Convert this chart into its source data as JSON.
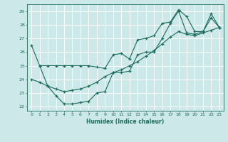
{
  "xlabel": "Humidex (Indice chaleur)",
  "bg_color": "#cce8e8",
  "grid_color": "#ffffff",
  "line_color": "#1a6b5a",
  "xlim": [
    -0.5,
    23.5
  ],
  "ylim": [
    21.7,
    29.5
  ],
  "yticks": [
    22,
    23,
    24,
    25,
    26,
    27,
    28,
    29
  ],
  "xticks": [
    0,
    1,
    2,
    3,
    4,
    5,
    6,
    7,
    8,
    9,
    10,
    11,
    12,
    13,
    14,
    15,
    16,
    17,
    18,
    19,
    20,
    21,
    22,
    23
  ],
  "line1_x": [
    0,
    1,
    2,
    3,
    4,
    5,
    6,
    7,
    8,
    9,
    10,
    11,
    12,
    13,
    14,
    15,
    16,
    17,
    18,
    19,
    20,
    21,
    22,
    23
  ],
  "line1_y": [
    26.5,
    25.0,
    25.0,
    25.0,
    25.0,
    25.0,
    25.0,
    25.0,
    24.9,
    24.8,
    25.8,
    25.9,
    25.5,
    26.9,
    27.0,
    27.2,
    28.1,
    28.2,
    29.1,
    28.6,
    27.5,
    27.5,
    28.8,
    27.8
  ],
  "line2_x": [
    1,
    2,
    3,
    4,
    5,
    6,
    7,
    8,
    9,
    10,
    11,
    12,
    13,
    14,
    15,
    16,
    17,
    18,
    19,
    20,
    21,
    22,
    23
  ],
  "line2_y": [
    25.0,
    23.5,
    22.8,
    22.2,
    22.2,
    22.3,
    22.4,
    23.0,
    23.1,
    24.5,
    24.5,
    24.6,
    25.8,
    26.0,
    26.0,
    27.0,
    28.1,
    29.0,
    27.4,
    27.3,
    27.5,
    28.5,
    27.8
  ],
  "line3_x": [
    0,
    1,
    2,
    3,
    4,
    5,
    6,
    7,
    8,
    9,
    10,
    11,
    12,
    13,
    14,
    15,
    16,
    17,
    18,
    19,
    20,
    21,
    22,
    23
  ],
  "line3_y": [
    24.0,
    23.8,
    23.5,
    23.3,
    23.1,
    23.2,
    23.3,
    23.5,
    23.8,
    24.2,
    24.5,
    24.7,
    25.0,
    25.3,
    25.7,
    26.1,
    26.6,
    27.1,
    27.5,
    27.3,
    27.2,
    27.4,
    27.6,
    27.8
  ]
}
